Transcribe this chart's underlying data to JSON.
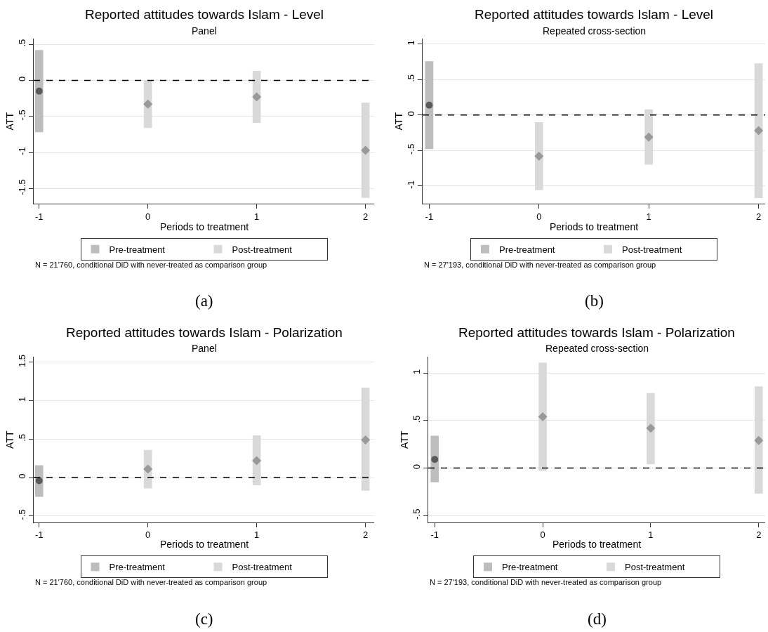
{
  "chart_data": [
    {
      "type": "scatter",
      "title": "Reported attitudes towards Islam - Level",
      "subtitle": "Panel",
      "xlabel": "Periods to treatment",
      "ylabel": "ATT",
      "xlim": [
        -1.05,
        2.08
      ],
      "xticks": [
        -1,
        0,
        1,
        2
      ],
      "ylim": [
        -1.71,
        0.58
      ],
      "yticks": [
        {
          "value": -1.5,
          "label": "-1.5"
        },
        -1,
        {
          "value": -0.5,
          "label": "-.5"
        },
        0,
        {
          "value": 0.5,
          "label": ".5"
        }
      ],
      "grid": "y",
      "legend": "bottom",
      "ref_lines": [
        {
          "axis": "y",
          "value": 0,
          "line_style": "dashed",
          "color": "#000000"
        }
      ],
      "annotations": [
        "N = 21'760, conditional DiD with never-treated as comparison group",
        "(a)"
      ],
      "series": [
        {
          "type": "bar",
          "name": "Pre-treatment",
          "color": "#bdbdbd",
          "x": [
            -1
          ],
          "base": [
            -0.72
          ],
          "values": [
            1.14
          ]
        },
        {
          "type": "bar",
          "name": "Post-treatment",
          "color": "#d9d9d9",
          "x": [
            0,
            1,
            2
          ],
          "base": [
            -0.66,
            -0.59,
            -1.63
          ],
          "values": [
            0.66,
            0.72,
            1.32
          ]
        },
        {
          "color": "#5a5a5a",
          "marker": "circle",
          "x": [
            -1
          ],
          "values": [
            -0.15
          ]
        },
        {
          "color": "#999999",
          "marker": "diamond",
          "x": [
            0,
            1,
            2
          ],
          "values": [
            -0.33,
            -0.23,
            -0.97
          ]
        }
      ]
    },
    {
      "type": "scatter",
      "title": "Reported attitudes towards Islam - Level",
      "subtitle": "Repeated cross-section",
      "xlabel": "Periods to treatment",
      "ylabel": "ATT",
      "xlim": [
        -1.06,
        2.06
      ],
      "xticks": [
        -1,
        0,
        1,
        2
      ],
      "ylim": [
        -1.25,
        1.08
      ],
      "yticks": [
        -1,
        {
          "value": -0.5,
          "label": "-.5"
        },
        0,
        {
          "value": 0.5,
          "label": ".5"
        },
        1
      ],
      "grid": "y",
      "legend": "bottom",
      "ref_lines": [
        {
          "axis": "y",
          "value": 0,
          "line_style": "dashed",
          "color": "#000000"
        }
      ],
      "annotations": [
        "N = 27'193, conditional DiD with never-treated as comparison group",
        "(b)"
      ],
      "series": [
        {
          "type": "bar",
          "name": "Pre-treatment",
          "color": "#bdbdbd",
          "x": [
            -1
          ],
          "base": [
            -0.48
          ],
          "values": [
            1.24
          ]
        },
        {
          "type": "bar",
          "name": "Post-treatment",
          "color": "#d9d9d9",
          "x": [
            0,
            1,
            2
          ],
          "base": [
            -1.06,
            -0.7,
            -1.17
          ],
          "values": [
            0.96,
            0.78,
            1.9
          ]
        },
        {
          "color": "#5a5a5a",
          "marker": "circle",
          "x": [
            -1
          ],
          "values": [
            0.14
          ]
        },
        {
          "color": "#999999",
          "marker": "diamond",
          "x": [
            0,
            1,
            2
          ],
          "values": [
            -0.58,
            -0.31,
            -0.22
          ]
        }
      ]
    },
    {
      "type": "scatter",
      "title": "Reported attitudes towards Islam - Polarization",
      "subtitle": "Panel",
      "xlabel": "Periods to treatment",
      "ylabel": "ATT",
      "xlim": [
        -1.05,
        2.08
      ],
      "xticks": [
        -1,
        0,
        1,
        2
      ],
      "ylim": [
        -0.58,
        1.57
      ],
      "yticks": [
        {
          "value": -0.5,
          "label": "-.5"
        },
        0,
        {
          "value": 0.5,
          "label": ".5"
        },
        1,
        1.5
      ],
      "grid": "y",
      "legend": "bottom",
      "ref_lines": [
        {
          "axis": "y",
          "value": 0,
          "line_style": "dashed",
          "color": "#000000"
        }
      ],
      "annotations": [
        "N = 21'760, conditional DiD with never-treated as comparison group",
        "(c)"
      ],
      "series": [
        {
          "type": "bar",
          "name": "Pre-treatment",
          "color": "#bdbdbd",
          "x": [
            -1
          ],
          "base": [
            -0.25
          ],
          "values": [
            0.41
          ]
        },
        {
          "type": "bar",
          "name": "Post-treatment",
          "color": "#d9d9d9",
          "x": [
            0,
            1,
            2
          ],
          "base": [
            -0.14,
            -0.1,
            -0.17
          ],
          "values": [
            0.5,
            0.65,
            1.34
          ]
        },
        {
          "color": "#5a5a5a",
          "marker": "circle",
          "x": [
            -1
          ],
          "values": [
            -0.04
          ]
        },
        {
          "color": "#999999",
          "marker": "diamond",
          "x": [
            0,
            1,
            2
          ],
          "values": [
            0.11,
            0.22,
            0.49
          ]
        }
      ]
    },
    {
      "type": "scatter",
      "title": "Reported attitudes towards Islam - Polarization",
      "subtitle": "Repeated cross-section",
      "xlabel": "Periods to treatment",
      "ylabel": "ATT",
      "xlim": [
        -1.06,
        2.06
      ],
      "xticks": [
        -1,
        0,
        1,
        2
      ],
      "ylim": [
        -0.57,
        1.17
      ],
      "yticks": [
        {
          "value": -0.5,
          "label": "-.5"
        },
        0,
        {
          "value": 0.5,
          "label": ".5"
        },
        1
      ],
      "grid": "y",
      "legend": "bottom",
      "ref_lines": [
        {
          "axis": "y",
          "value": 0,
          "line_style": "dashed",
          "color": "#000000"
        }
      ],
      "annotations": [
        "N = 27'193, conditional DiD with never-treated as comparison group",
        "(d)"
      ],
      "series": [
        {
          "type": "bar",
          "name": "Pre-treatment",
          "color": "#bdbdbd",
          "x": [
            -1
          ],
          "base": [
            -0.15
          ],
          "values": [
            0.49
          ]
        },
        {
          "type": "bar",
          "name": "Post-treatment",
          "color": "#d9d9d9",
          "x": [
            0,
            1,
            2
          ],
          "base": [
            -0.03,
            0.04,
            -0.27
          ],
          "values": [
            1.14,
            0.75,
            1.13
          ]
        },
        {
          "color": "#5a5a5a",
          "marker": "circle",
          "x": [
            -1
          ],
          "values": [
            0.09
          ]
        },
        {
          "color": "#999999",
          "marker": "diamond",
          "x": [
            0,
            1,
            2
          ],
          "values": [
            0.54,
            0.42,
            0.29
          ]
        }
      ]
    }
  ]
}
